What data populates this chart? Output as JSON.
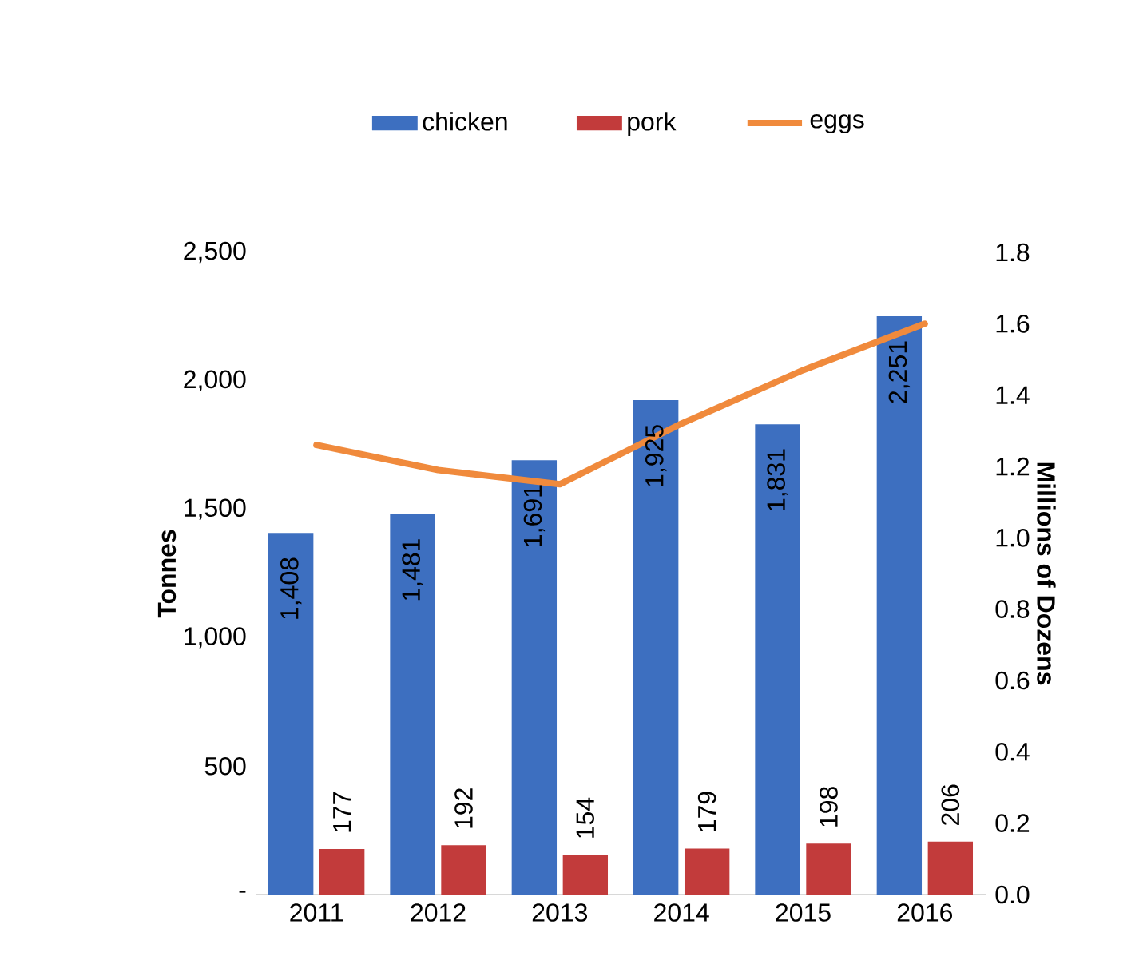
{
  "chart_data": {
    "type": "bar",
    "categories": [
      "2011",
      "2012",
      "2013",
      "2014",
      "2015",
      "2016"
    ],
    "series": [
      {
        "name": "chicken",
        "color": "#3d6fc0",
        "values": [
          1408,
          1481,
          1691,
          1925,
          1831,
          2251
        ],
        "value_labels": [
          "1,408",
          "1,481",
          "1,691",
          "1,925",
          "1,831",
          "2,251"
        ]
      },
      {
        "name": "pork",
        "color": "#c23b3b",
        "values": [
          177,
          192,
          154,
          179,
          198,
          206
        ],
        "value_labels": [
          "177",
          "192",
          "154",
          "179",
          "198",
          "206"
        ]
      },
      {
        "name": "eggs",
        "type": "line",
        "axis": "y2",
        "color": "#f08a3c",
        "values": [
          1.26,
          1.19,
          1.15,
          1.32,
          1.47,
          1.6
        ]
      }
    ],
    "ylabel": "Tonnes",
    "y2label": "Millions of Dozens",
    "ylim": [
      0,
      2500
    ],
    "yticks": [
      {
        "value": 0,
        "label": "-"
      },
      {
        "value": 500,
        "label": "500"
      },
      {
        "value": 1000,
        "label": "1,000"
      },
      {
        "value": 1500,
        "label": "1,500"
      },
      {
        "value": 2000,
        "label": "2,000"
      },
      {
        "value": 2500,
        "label": "2,500"
      }
    ],
    "y2lim": [
      0,
      1.8
    ],
    "y2ticks": [
      {
        "value": 0,
        "label": "0.0"
      },
      {
        "value": 0.2,
        "label": "0.2"
      },
      {
        "value": 0.4,
        "label": "0.4"
      },
      {
        "value": 0.6,
        "label": "0.6"
      },
      {
        "value": 0.8,
        "label": "0.8"
      },
      {
        "value": 1.0,
        "label": "1.0"
      },
      {
        "value": 1.2,
        "label": "1.2"
      },
      {
        "value": 1.4,
        "label": "1.4"
      },
      {
        "value": 1.6,
        "label": "1.6"
      },
      {
        "value": 1.8,
        "label": "1.8"
      }
    ],
    "legend": "top"
  }
}
